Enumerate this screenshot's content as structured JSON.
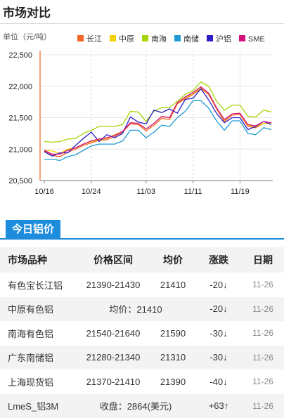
{
  "header": {
    "title": "市场对比"
  },
  "chart_data": {
    "type": "line",
    "unit_label": "单位（元/吨）",
    "ylim": [
      20500,
      22500
    ],
    "y_ticks": [
      "20,500",
      "21,000",
      "21,500",
      "22,000",
      "22,500"
    ],
    "y_tick_values": [
      20500,
      21000,
      21500,
      22000,
      22500
    ],
    "x_tick_labels": [
      "10/16",
      "10/24",
      "11/03",
      "11/11",
      "11/19"
    ],
    "x_tick_index": [
      0,
      6,
      13,
      19,
      25
    ],
    "grid": true,
    "legend_position": "top-right",
    "series": [
      {
        "name": "长江",
        "color": "#f26522",
        "values": [
          20970,
          20900,
          20880,
          20950,
          21000,
          21060,
          21100,
          21140,
          21150,
          21200,
          21270,
          21400,
          21390,
          21290,
          21380,
          21490,
          21470,
          21720,
          21800,
          21870,
          21960,
          21870,
          21640,
          21440,
          21540,
          21550,
          21360,
          21340,
          21410,
          21410
        ]
      },
      {
        "name": "中原",
        "color": "#f4d200",
        "values": [
          20980,
          20970,
          20930,
          21000,
          21020,
          21080,
          21120,
          21150,
          21170,
          21230,
          21280,
          21420,
          21410,
          21320,
          21410,
          21520,
          21500,
          21740,
          21820,
          21890,
          21980,
          21890,
          21660,
          21460,
          21560,
          21570,
          21380,
          21360,
          21410,
          21410
        ]
      },
      {
        "name": "南海",
        "color": "#a6d608",
        "values": [
          21120,
          21110,
          21120,
          21160,
          21170,
          21250,
          21300,
          21360,
          21360,
          21360,
          21390,
          21600,
          21590,
          21440,
          21600,
          21660,
          21660,
          21760,
          21870,
          21930,
          22070,
          22000,
          21760,
          21620,
          21700,
          21700,
          21520,
          21510,
          21620,
          21590
        ]
      },
      {
        "name": "南储",
        "color": "#1e9ad6",
        "values": [
          20840,
          20840,
          20820,
          20880,
          20910,
          20980,
          21050,
          21080,
          21080,
          21080,
          21130,
          21300,
          21300,
          21180,
          21270,
          21380,
          21360,
          21500,
          21600,
          21770,
          21770,
          21650,
          21450,
          21300,
          21450,
          21450,
          21250,
          21230,
          21340,
          21310
        ]
      },
      {
        "name": "沪铝",
        "color": "#2b1ec8",
        "values": [
          20960,
          20890,
          20940,
          20940,
          21060,
          21170,
          21270,
          21120,
          21230,
          21180,
          21250,
          21510,
          21430,
          21400,
          21620,
          21580,
          21640,
          21570,
          21790,
          21810,
          21960,
          21780,
          21570,
          21420,
          21500,
          21500,
          21310,
          21360,
          21440,
          21390
        ]
      },
      {
        "name": "SME",
        "color": "#d4107c",
        "values": [
          20980,
          20920,
          20920,
          20980,
          21020,
          21080,
          21130,
          21160,
          21180,
          21220,
          21280,
          21420,
          21410,
          21320,
          21410,
          21520,
          21500,
          21740,
          21830,
          21900,
          21990,
          21890,
          21660,
          21470,
          21560,
          21570,
          21390,
          21370,
          21440,
          21420
        ]
      }
    ]
  },
  "price_panel": {
    "tab_label": "今日铝价",
    "headers": {
      "name": "市场品种",
      "range": "价格区间",
      "avg": "均价",
      "change": "涨跌",
      "date": "日期"
    },
    "rows": [
      {
        "name": "有色宝长江铝",
        "range": "21390-21430",
        "avg": "21410",
        "change": "-20",
        "direction": "down",
        "date": "11-26"
      },
      {
        "name": "中原有色铝",
        "combined": "均价：21410",
        "change": "-20",
        "direction": "down",
        "date": "11-26"
      },
      {
        "name": "南海有色铝",
        "range": "21540-21640",
        "avg": "21590",
        "change": "-30",
        "direction": "down",
        "date": "11-26"
      },
      {
        "name": "广东南储铝",
        "range": "21280-21340",
        "avg": "21310",
        "change": "-30",
        "direction": "down",
        "date": "11-26"
      },
      {
        "name": "上海现货铝",
        "range": "21370-21410",
        "avg": "21390",
        "change": "-40",
        "direction": "down",
        "date": "11-26"
      },
      {
        "name": "LmeS_铝3M",
        "combined": "收盘：2864(美元)",
        "change": "+63",
        "direction": "up",
        "date": "11-26"
      }
    ],
    "arrow_down": "↓",
    "arrow_up": "↑"
  }
}
